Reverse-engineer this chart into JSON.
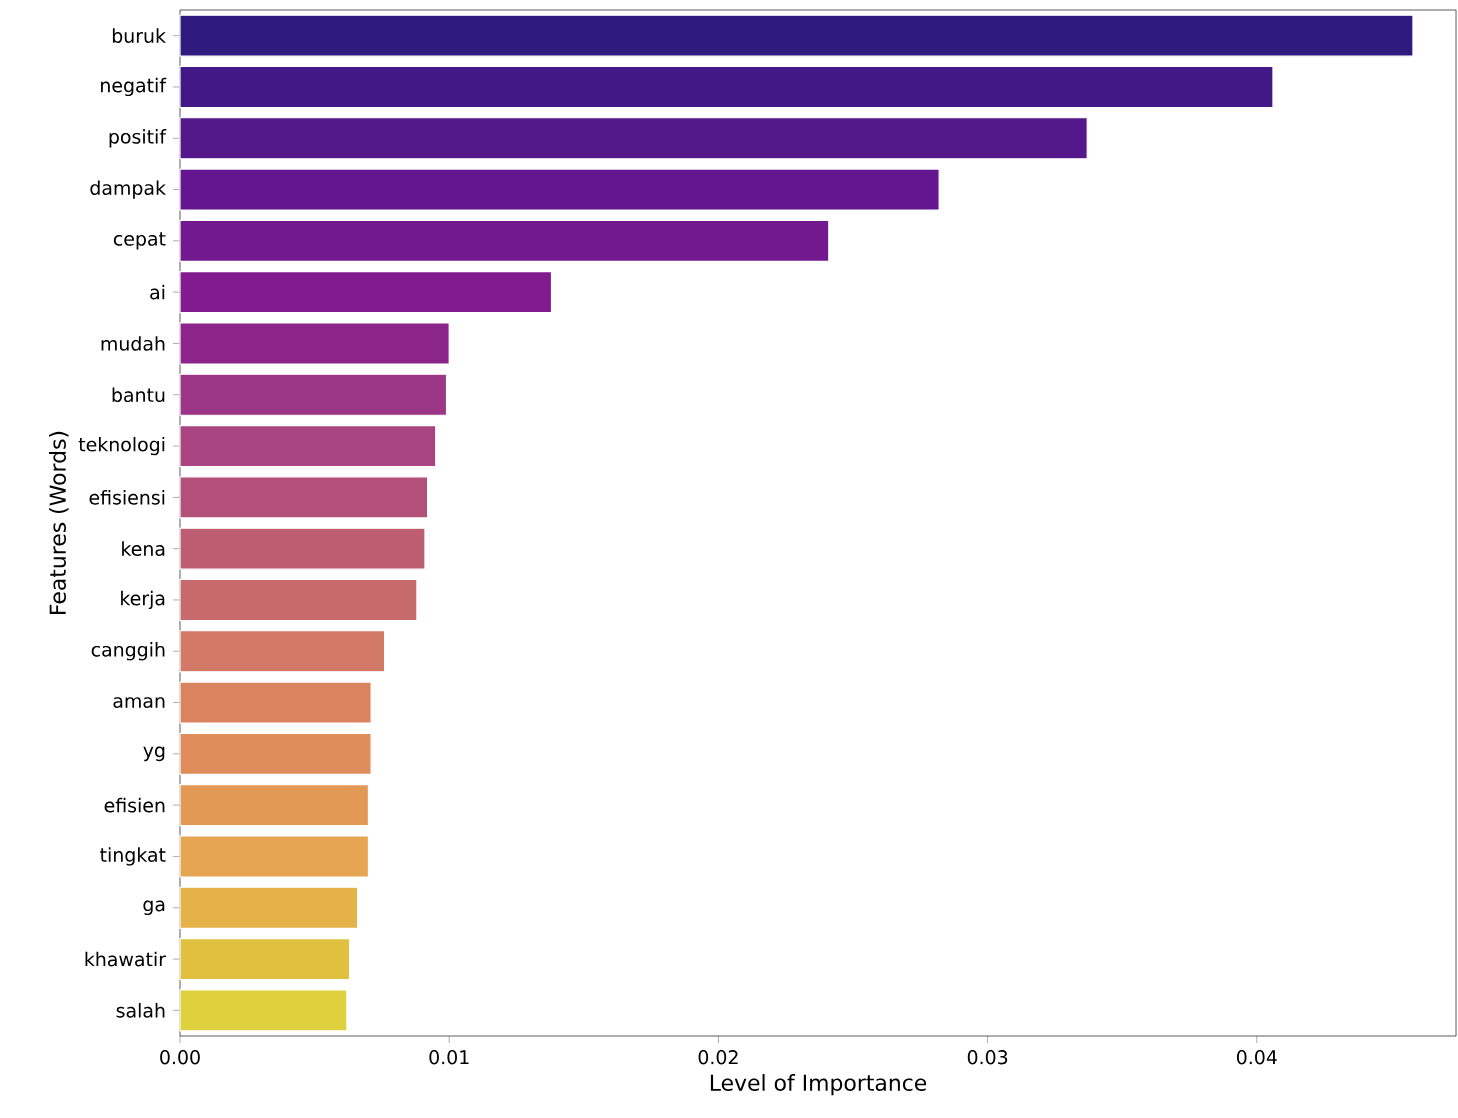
{
  "chart_data": {
    "type": "bar",
    "orientation": "horizontal",
    "xlabel": "Level of Importance",
    "ylabel": "Features (Words)",
    "categories": [
      "buruk",
      "negatif",
      "positif",
      "dampak",
      "cepat",
      "ai",
      "mudah",
      "bantu",
      "teknologi",
      "efisiensi",
      "kena",
      "kerja",
      "canggih",
      "aman",
      "yg",
      "efisien",
      "tingkat",
      "ga",
      "khawatir",
      "salah"
    ],
    "values": [
      0.0458,
      0.0406,
      0.0337,
      0.0282,
      0.0241,
      0.0138,
      0.01,
      0.0099,
      0.0095,
      0.0092,
      0.0091,
      0.0088,
      0.0076,
      0.0071,
      0.0071,
      0.007,
      0.007,
      0.0066,
      0.0063,
      0.0062
    ],
    "colors": [
      "#2f1a7e",
      "#421886",
      "#53188a",
      "#63168f",
      "#72198f",
      "#821c8e",
      "#8c268b",
      "#9b3585",
      "#a8447f",
      "#b35079",
      "#bd5d72",
      "#c76a6c",
      "#d27a67",
      "#da845f",
      "#df8e5b",
      "#e39956",
      "#e6a550",
      "#e4b247",
      "#e2c03f",
      "#dfd13e"
    ],
    "xlim": [
      0,
      0.0474
    ],
    "xticks": [
      {
        "value": 0,
        "label": "0.00"
      },
      {
        "value": 0.01,
        "label": "0.01"
      },
      {
        "value": 0.02,
        "label": "0.02"
      },
      {
        "value": 0.03,
        "label": "0.03"
      },
      {
        "value": 0.04,
        "label": "0.04"
      }
    ],
    "grid": false
  }
}
